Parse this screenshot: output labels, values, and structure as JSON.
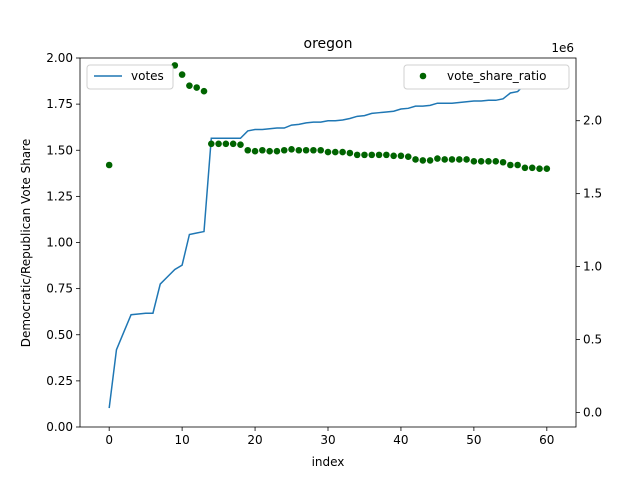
{
  "chart_data": {
    "type": "line+scatter",
    "title": "oregon",
    "xlabel": "index",
    "ylabel_left": "Democratic/Republican Vote Share",
    "ylabel_right": "",
    "right_axis_offset_label": "1e6",
    "xlim": [
      -4,
      64
    ],
    "ylim_left": [
      0,
      2.0
    ],
    "ylim_right": [
      -0.1,
      2.43
    ],
    "x_ticks": [
      0,
      10,
      20,
      30,
      40,
      50,
      60
    ],
    "y_ticks_left": [
      "0.00",
      "0.25",
      "0.50",
      "0.75",
      "1.00",
      "1.25",
      "1.50",
      "1.75",
      "2.00"
    ],
    "y_ticks_right": [
      "0.0",
      "0.5",
      "1.0",
      "1.5",
      "2.0"
    ],
    "series": [
      {
        "name": "votes",
        "kind": "line",
        "axis": "right",
        "color": "#1f77b4",
        "x": [
          0,
          1,
          2,
          3,
          4,
          5,
          6,
          7,
          8,
          9,
          10,
          11,
          12,
          13,
          14,
          15,
          16,
          17,
          18,
          19,
          20,
          21,
          22,
          23,
          24,
          25,
          26,
          27,
          28,
          29,
          30,
          31,
          32,
          33,
          34,
          35,
          36,
          37,
          38,
          39,
          40,
          41,
          42,
          43,
          44,
          45,
          46,
          47,
          48,
          49,
          50,
          51,
          52,
          53,
          54,
          55,
          56,
          57,
          58,
          59,
          60
        ],
        "y": [
          0.03,
          0.43,
          0.55,
          0.67,
          0.675,
          0.68,
          0.68,
          0.88,
          0.93,
          0.98,
          1.01,
          1.22,
          1.23,
          1.24,
          1.88,
          1.88,
          1.88,
          1.88,
          1.88,
          1.93,
          1.94,
          1.94,
          1.945,
          1.95,
          1.95,
          1.97,
          1.975,
          1.985,
          1.99,
          1.99,
          2.0,
          2.0,
          2.005,
          2.015,
          2.03,
          2.035,
          2.05,
          2.055,
          2.06,
          2.065,
          2.08,
          2.085,
          2.1,
          2.1,
          2.105,
          2.12,
          2.12,
          2.12,
          2.125,
          2.13,
          2.135,
          2.135,
          2.14,
          2.14,
          2.15,
          2.19,
          2.2,
          2.25,
          2.28,
          2.29,
          2.3
        ]
      },
      {
        "name": "vote_share_ratio",
        "kind": "scatter",
        "axis": "left",
        "color": "#006400",
        "x": [
          0,
          9,
          10,
          11,
          12,
          13,
          14,
          15,
          16,
          17,
          18,
          19,
          20,
          21,
          22,
          23,
          24,
          25,
          26,
          27,
          28,
          29,
          30,
          31,
          32,
          33,
          34,
          35,
          36,
          37,
          38,
          39,
          40,
          41,
          42,
          43,
          44,
          45,
          46,
          47,
          48,
          49,
          50,
          51,
          52,
          53,
          54,
          55,
          56,
          57,
          58,
          59,
          60
        ],
        "y": [
          1.42,
          1.96,
          1.91,
          1.85,
          1.84,
          1.82,
          1.535,
          1.535,
          1.535,
          1.535,
          1.53,
          1.5,
          1.495,
          1.5,
          1.495,
          1.495,
          1.5,
          1.505,
          1.5,
          1.5,
          1.5,
          1.5,
          1.49,
          1.49,
          1.49,
          1.485,
          1.475,
          1.475,
          1.475,
          1.475,
          1.475,
          1.47,
          1.47,
          1.465,
          1.45,
          1.445,
          1.445,
          1.455,
          1.45,
          1.45,
          1.45,
          1.45,
          1.44,
          1.44,
          1.44,
          1.44,
          1.435,
          1.42,
          1.42,
          1.405,
          1.405,
          1.4,
          1.4
        ]
      }
    ],
    "legends": [
      {
        "label": "votes",
        "placement": "top-left"
      },
      {
        "label": "vote_share_ratio",
        "placement": "top-right"
      }
    ]
  }
}
